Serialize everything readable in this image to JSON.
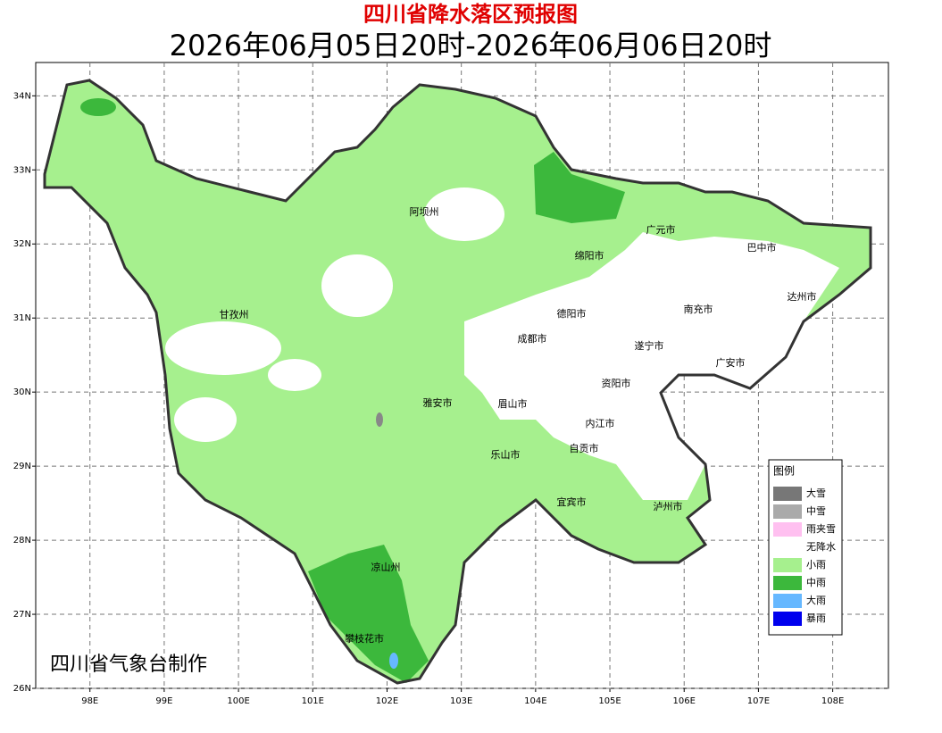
{
  "title": "四川省降水落区预报图",
  "subtitle": "2026年06月05日20时-2026年06月06日20时",
  "credit": "四川省气象台制作",
  "map": {
    "xlim": [
      97.27,
      108.75
    ],
    "ylim": [
      26,
      34.45
    ],
    "grid": true,
    "xticks": [
      {
        "value": 98,
        "label": "98E"
      },
      {
        "value": 99,
        "label": "99E"
      },
      {
        "value": 100,
        "label": "100E"
      },
      {
        "value": 101,
        "label": "101E"
      },
      {
        "value": 102,
        "label": "102E"
      },
      {
        "value": 103,
        "label": "103E"
      },
      {
        "value": 104,
        "label": "104E"
      },
      {
        "value": 105,
        "label": "105E"
      },
      {
        "value": 106,
        "label": "106E"
      },
      {
        "value": 107,
        "label": "107E"
      },
      {
        "value": 108,
        "label": "108E"
      }
    ],
    "yticks": [
      {
        "value": 26,
        "label": "26N"
      },
      {
        "value": 27,
        "label": "27N"
      },
      {
        "value": 28,
        "label": "28N"
      },
      {
        "value": 29,
        "label": "29N"
      },
      {
        "value": 30,
        "label": "30N"
      },
      {
        "value": 31,
        "label": "31N"
      },
      {
        "value": 32,
        "label": "32N"
      },
      {
        "value": 33,
        "label": "33N"
      },
      {
        "value": 34,
        "label": "34N"
      }
    ]
  },
  "cities": [
    "阿坝州",
    "广元市",
    "巴中市",
    "绵阳市",
    "达州市",
    "甘孜州",
    "德阳市",
    "南充市",
    "成都市",
    "遂宁市",
    "广安市",
    "资阳市",
    "雅安市",
    "眉山市",
    "内江市",
    "自贡市",
    "乐山市",
    "宜宾市",
    "泸州市",
    "凉山州",
    "攀枝花市"
  ],
  "legend": {
    "title": "图例",
    "items": [
      {
        "label": "大雪",
        "color": "#777777"
      },
      {
        "label": "中雪",
        "color": "#aaaaaa"
      },
      {
        "label": "雨夹雪",
        "color": "#ffc0f0"
      },
      {
        "label": "无降水",
        "color": "#ffffff"
      },
      {
        "label": "小雨",
        "color": "#a6f08e"
      },
      {
        "label": "中雨",
        "color": "#3cb83c"
      },
      {
        "label": "大雨",
        "color": "#66b8ff"
      },
      {
        "label": "暴雨",
        "color": "#0000ee"
      }
    ]
  }
}
